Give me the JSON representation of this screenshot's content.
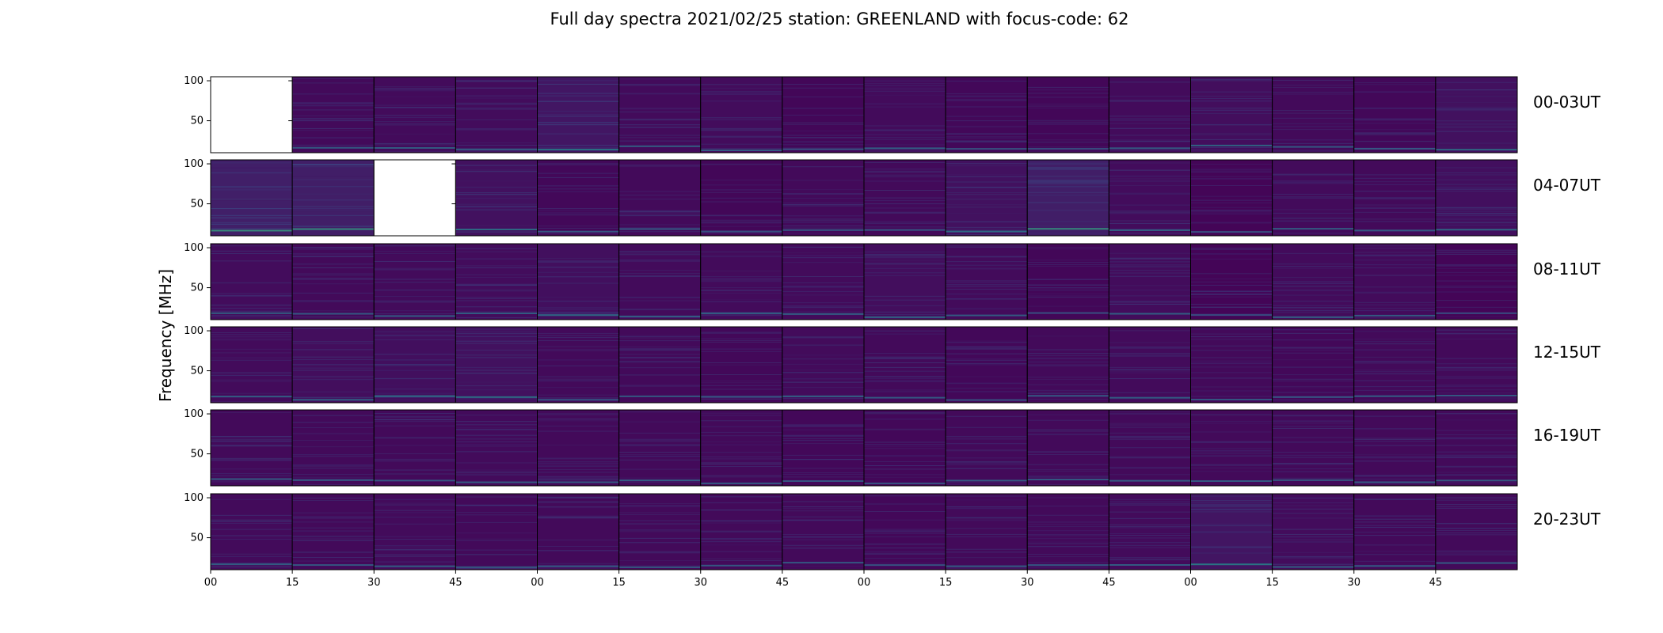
{
  "chart_data": {
    "type": "heatmap",
    "title": "Full day spectra 2021/02/25 station: GREENLAND with focus-code: 62",
    "ylabel": "Frequency [MHz]",
    "y_ticks": [
      "100",
      "50"
    ],
    "x_ticks": [
      "00",
      "15",
      "30",
      "45",
      "00",
      "15",
      "30",
      "45",
      "00",
      "15",
      "30",
      "45",
      "00",
      "15",
      "30",
      "45"
    ],
    "panels_per_row": 16,
    "minutes_per_panel": 15,
    "colormap": "viridis",
    "rows": [
      {
        "label": "00-03UT",
        "missing_panels": [
          0
        ],
        "intensity": [
          0,
          0.12,
          0.14,
          0.16,
          0.3,
          0.14,
          0.16,
          0.08,
          0.14,
          0.1,
          0.08,
          0.14,
          0.18,
          0.12,
          0.1,
          0.22
        ]
      },
      {
        "label": "04-07UT",
        "missing_panels": [
          2
        ],
        "intensity": [
          0.42,
          0.4,
          0,
          0.22,
          0.1,
          0.12,
          0.08,
          0.12,
          0.12,
          0.22,
          0.4,
          0.16,
          0.06,
          0.14,
          0.12,
          0.2
        ]
      },
      {
        "label": "08-11UT",
        "missing_panels": [],
        "intensity": [
          0.16,
          0.12,
          0.14,
          0.16,
          0.2,
          0.14,
          0.14,
          0.14,
          0.18,
          0.14,
          0.08,
          0.16,
          0.06,
          0.14,
          0.14,
          0.06
        ]
      },
      {
        "label": "12-15UT",
        "missing_panels": [],
        "intensity": [
          0.14,
          0.18,
          0.2,
          0.22,
          0.12,
          0.12,
          0.1,
          0.14,
          0.12,
          0.1,
          0.12,
          0.14,
          0.12,
          0.1,
          0.12,
          0.12
        ]
      },
      {
        "label": "16-19UT",
        "missing_panels": [],
        "intensity": [
          0.12,
          0.12,
          0.12,
          0.14,
          0.12,
          0.12,
          0.12,
          0.1,
          0.1,
          0.12,
          0.12,
          0.12,
          0.12,
          0.12,
          0.12,
          0.12
        ]
      },
      {
        "label": "20-23UT",
        "missing_panels": [],
        "intensity": [
          0.14,
          0.12,
          0.14,
          0.12,
          0.12,
          0.12,
          0.12,
          0.12,
          0.1,
          0.12,
          0.12,
          0.14,
          0.28,
          0.16,
          0.12,
          0.12
        ]
      }
    ]
  }
}
